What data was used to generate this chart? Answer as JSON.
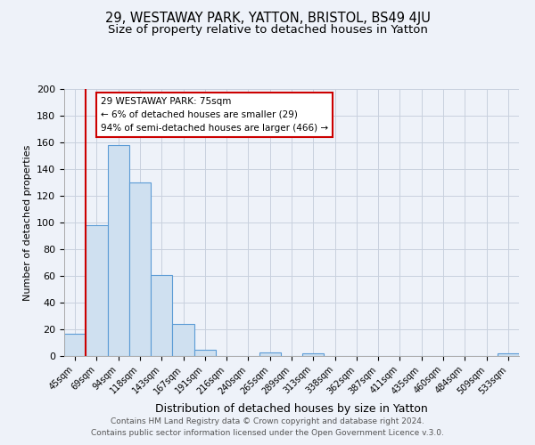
{
  "title_line1": "29, WESTAWAY PARK, YATTON, BRISTOL, BS49 4JU",
  "title_line2": "Size of property relative to detached houses in Yatton",
  "xlabel": "Distribution of detached houses by size in Yatton",
  "ylabel": "Number of detached properties",
  "footer_line1": "Contains HM Land Registry data © Crown copyright and database right 2024.",
  "footer_line2": "Contains public sector information licensed under the Open Government Licence v.3.0.",
  "bin_labels": [
    "45sqm",
    "69sqm",
    "94sqm",
    "118sqm",
    "143sqm",
    "167sqm",
    "191sqm",
    "216sqm",
    "240sqm",
    "265sqm",
    "289sqm",
    "313sqm",
    "338sqm",
    "362sqm",
    "387sqm",
    "411sqm",
    "435sqm",
    "460sqm",
    "484sqm",
    "509sqm",
    "533sqm"
  ],
  "bar_heights": [
    17,
    98,
    158,
    130,
    61,
    24,
    5,
    0,
    0,
    3,
    0,
    2,
    0,
    0,
    0,
    0,
    0,
    0,
    0,
    0,
    2
  ],
  "bar_color": "#cfe0f0",
  "bar_edge_color": "#5b9bd5",
  "annotation_title": "29 WESTAWAY PARK: 75sqm",
  "annotation_line2": "← 6% of detached houses are smaller (29)",
  "annotation_line3": "94% of semi-detached houses are larger (466) →",
  "annotation_box_edge": "#cc0000",
  "red_line_color": "#cc0000",
  "ylim": [
    0,
    200
  ],
  "yticks": [
    0,
    20,
    40,
    60,
    80,
    100,
    120,
    140,
    160,
    180,
    200
  ],
  "bg_color": "#eef2f9",
  "grid_color": "#c8d0de",
  "title1_fontsize": 10.5,
  "title2_fontsize": 9.5,
  "footer_fontsize": 6.5
}
